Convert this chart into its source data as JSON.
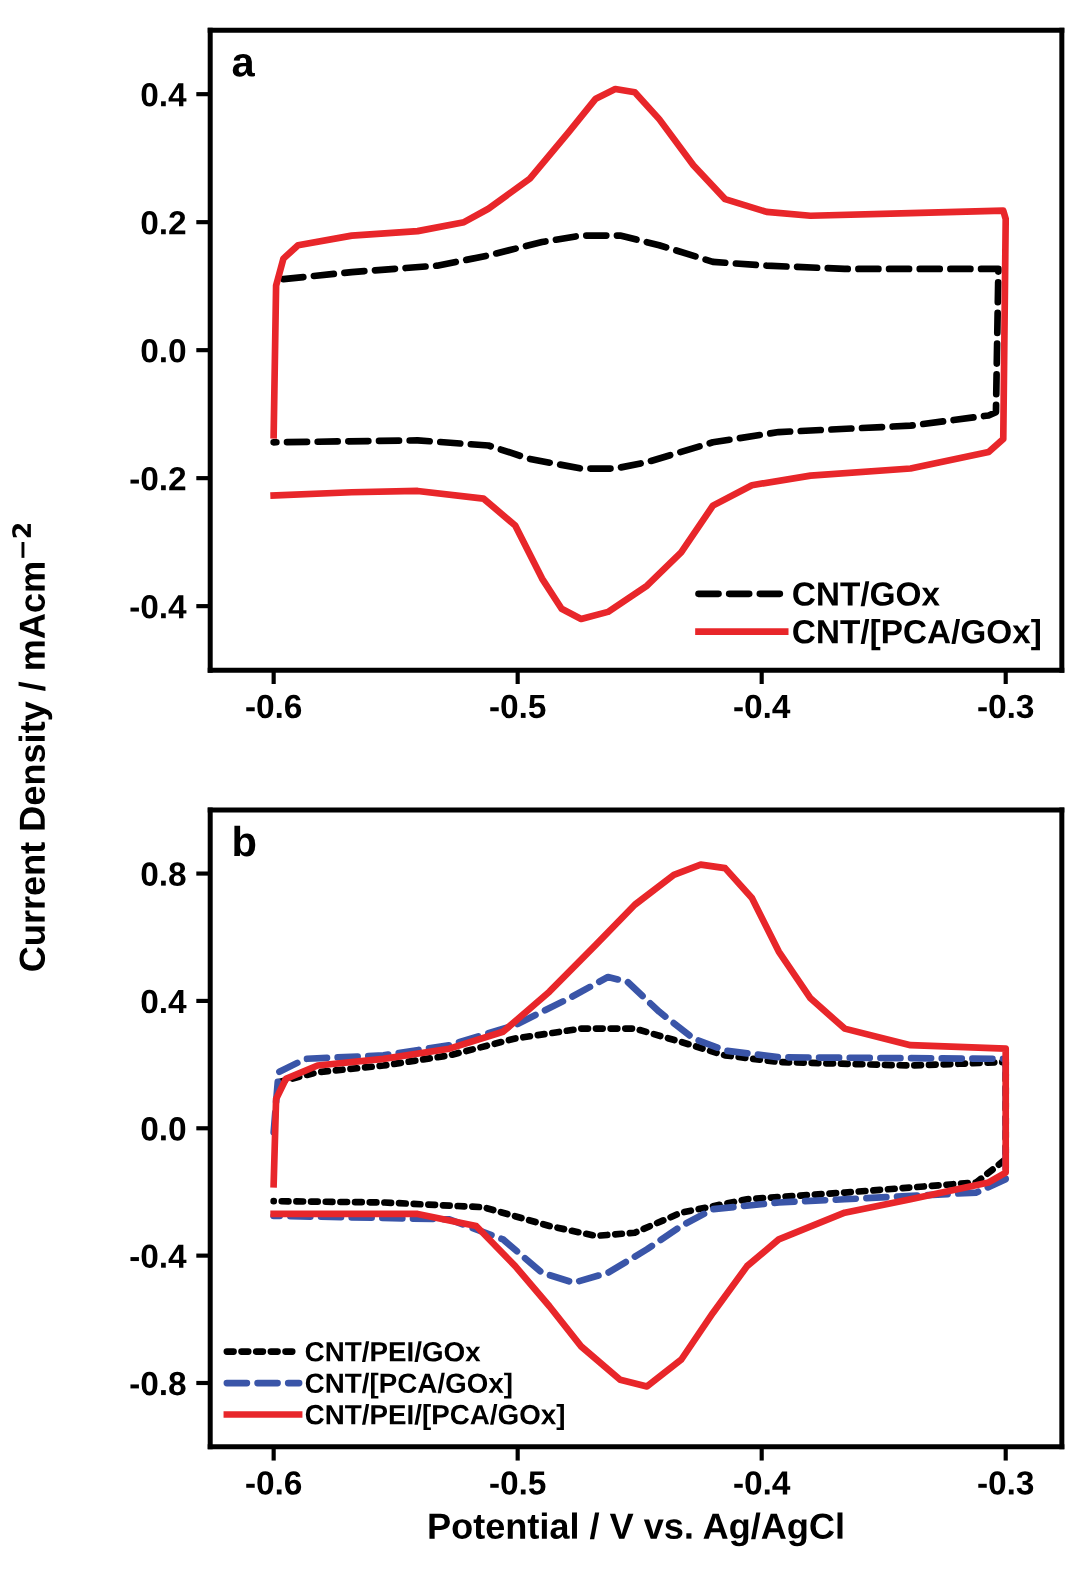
{
  "chart_data": [
    {
      "type": "line",
      "annotations": [
        "a"
      ],
      "ylabel": "Current Density / mAcm$^{−2}$",
      "xlim": [
        -0.626,
        -0.277
      ],
      "ylim": [
        -0.5,
        0.5
      ],
      "xticks": [
        -0.6,
        -0.5,
        -0.4,
        -0.3
      ],
      "yticks": [
        -0.4,
        -0.2,
        {
          "value": 0,
          "label": "0.0"
        },
        0.2,
        0.4
      ],
      "grid": false,
      "legend": "bottom right",
      "marker": "none",
      "series": [
        {
          "name": "CNT/GOx",
          "color": "#000000",
          "line_style": "dashed",
          "x": [
            -0.596,
            -0.568,
            -0.533,
            -0.512,
            -0.49,
            -0.474,
            -0.458,
            -0.442,
            -0.42,
            -0.398,
            -0.366,
            -0.303,
            -0.304,
            -0.307,
            -0.339,
            -0.393,
            -0.42,
            -0.433,
            -0.447,
            -0.46,
            -0.474,
            -0.495,
            -0.512,
            -0.541,
            -0.6
          ],
          "values": [
            0.111,
            0.122,
            0.132,
            0.148,
            0.169,
            0.179,
            0.179,
            0.164,
            0.138,
            0.132,
            0.127,
            0.127,
            -0.097,
            -0.102,
            -0.118,
            -0.128,
            -0.144,
            -0.159,
            -0.175,
            -0.185,
            -0.185,
            -0.17,
            -0.149,
            -0.141,
            -0.144
          ]
        },
        {
          "name": "CNT/[PCA/GOx]",
          "color": "#e8262a",
          "line_style": "solid",
          "x": [
            -0.6,
            -0.599,
            -0.596,
            -0.59,
            -0.568,
            -0.541,
            -0.522,
            -0.512,
            -0.495,
            -0.479,
            -0.468,
            -0.46,
            -0.452,
            -0.442,
            -0.428,
            -0.415,
            -0.398,
            -0.38,
            -0.339,
            -0.301,
            -0.3,
            -0.301,
            -0.307,
            -0.339,
            -0.38,
            -0.404,
            -0.42,
            -0.433,
            -0.447,
            -0.463,
            -0.474,
            -0.482,
            -0.49,
            -0.501,
            -0.514,
            -0.541,
            -0.568,
            -0.6
          ],
          "values": [
            -0.133,
            0.101,
            0.143,
            0.164,
            0.179,
            0.186,
            0.2,
            0.221,
            0.268,
            0.341,
            0.393,
            0.408,
            0.403,
            0.361,
            0.289,
            0.236,
            0.216,
            0.21,
            0.214,
            0.218,
            0.205,
            -0.139,
            -0.159,
            -0.185,
            -0.196,
            -0.211,
            -0.243,
            -0.316,
            -0.368,
            -0.409,
            -0.42,
            -0.404,
            -0.357,
            -0.274,
            -0.232,
            -0.22,
            -0.222,
            -0.227
          ]
        }
      ]
    },
    {
      "type": "line",
      "annotations": [
        "b"
      ],
      "xlabel": "Potential / V vs. Ag/AgCl",
      "xlim": [
        -0.626,
        -0.277
      ],
      "ylim": [
        -1.0,
        1.0
      ],
      "xticks": [
        -0.6,
        -0.5,
        -0.4,
        -0.3
      ],
      "yticks": [
        -0.8,
        -0.4,
        {
          "value": 0,
          "label": "0.0"
        },
        0.4,
        0.8
      ],
      "grid": false,
      "legend": "bottom left",
      "marker": "none",
      "series": [
        {
          "name": "CNT/PEI/GOx",
          "color": "#000000",
          "line_style": "dotted",
          "x": [
            -0.598,
            -0.582,
            -0.555,
            -0.528,
            -0.501,
            -0.474,
            -0.452,
            -0.433,
            -0.415,
            -0.393,
            -0.339,
            -0.3,
            -0.3,
            -0.312,
            -0.366,
            -0.406,
            -0.433,
            -0.452,
            -0.468,
            -0.487,
            -0.514,
            -0.555,
            -0.6
          ],
          "values": [
            0.145,
            0.176,
            0.197,
            0.229,
            0.282,
            0.313,
            0.313,
            0.271,
            0.229,
            0.208,
            0.197,
            0.208,
            -0.097,
            -0.17,
            -0.202,
            -0.223,
            -0.265,
            -0.328,
            -0.338,
            -0.307,
            -0.248,
            -0.233,
            -0.229
          ]
        },
        {
          "name": "CNT/[PCA/GOx]",
          "color": "#3a55a8",
          "line_style": "dashed",
          "x": [
            -0.6,
            -0.598,
            -0.587,
            -0.555,
            -0.528,
            -0.501,
            -0.479,
            -0.463,
            -0.455,
            -0.442,
            -0.428,
            -0.415,
            -0.393,
            -0.3,
            -0.3,
            -0.312,
            -0.366,
            -0.393,
            -0.42,
            -0.433,
            -0.447,
            -0.463,
            -0.477,
            -0.49,
            -0.506,
            -0.528,
            -0.6
          ],
          "values": [
            -0.013,
            0.176,
            0.218,
            0.229,
            0.261,
            0.324,
            0.408,
            0.475,
            0.46,
            0.366,
            0.282,
            0.244,
            0.223,
            0.218,
            -0.16,
            -0.202,
            -0.223,
            -0.233,
            -0.254,
            -0.307,
            -0.38,
            -0.454,
            -0.485,
            -0.454,
            -0.349,
            -0.286,
            -0.275
          ]
        },
        {
          "name": "CNT/PEI/[PCA/GOx]",
          "color": "#e8262a",
          "line_style": "solid",
          "x": [
            -0.6,
            -0.599,
            -0.595,
            -0.582,
            -0.555,
            -0.528,
            -0.506,
            -0.487,
            -0.468,
            -0.452,
            -0.436,
            -0.425,
            -0.415,
            -0.404,
            -0.393,
            -0.38,
            -0.366,
            -0.339,
            -0.3,
            -0.3,
            -0.307,
            -0.339,
            -0.366,
            -0.393,
            -0.406,
            -0.42,
            -0.433,
            -0.447,
            -0.458,
            -0.474,
            -0.487,
            -0.501,
            -0.517,
            -0.541,
            -0.6
          ],
          "values": [
            -0.176,
            0.092,
            0.155,
            0.197,
            0.218,
            0.25,
            0.303,
            0.429,
            0.576,
            0.702,
            0.796,
            0.828,
            0.817,
            0.723,
            0.555,
            0.408,
            0.313,
            0.261,
            0.25,
            -0.139,
            -0.17,
            -0.223,
            -0.265,
            -0.349,
            -0.433,
            -0.58,
            -0.727,
            -0.811,
            -0.79,
            -0.685,
            -0.559,
            -0.433,
            -0.307,
            -0.269,
            -0.269
          ]
        }
      ]
    }
  ]
}
